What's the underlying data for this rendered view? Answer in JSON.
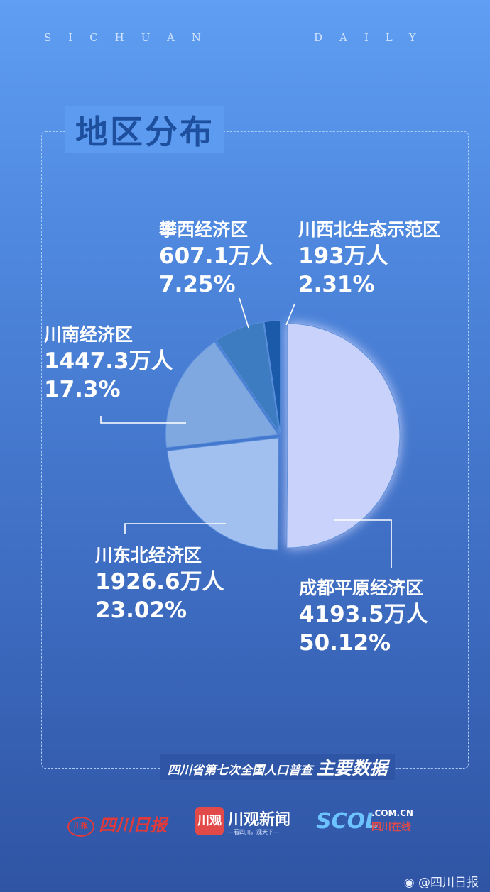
{
  "masthead": {
    "left": "SICHUAN",
    "right": "DAILY"
  },
  "section_title": "地区分布",
  "footer_tag": {
    "part1": "四川省第七次全国人口普查",
    "part2": "主要数据"
  },
  "logos": {
    "sichuan_daily_seal": "川报",
    "sichuan_daily": "四川日报",
    "chuanguan_icon": "川观",
    "chuanguan": "川观新闻",
    "chuanguan_slogan": "—看四川，观天下—",
    "scol": "SCOL",
    "scol_domain": ".COM.CN",
    "scol_cn": "四川在线"
  },
  "weibo": {
    "icon": "weibo-icon",
    "handle": "@四川日报"
  },
  "colors": {
    "region_chengdu": "#c9d2fb",
    "region_chuandongbei": "#a2c0ef",
    "region_chuannan": "#7fa8e0",
    "region_panxi": "#3e7cc1",
    "region_chuanxibei": "#1a5aa8",
    "title": "#1d4f9e"
  },
  "chart_data": {
    "type": "pie",
    "title": "地区分布",
    "unit": "万人",
    "slices": [
      {
        "label": "成都平原经济区",
        "population": 4193.5,
        "population_text": "4193.5万人",
        "percent": 50.12,
        "percent_text": "50.12%"
      },
      {
        "label": "川东北经济区",
        "population": 1926.6,
        "population_text": "1926.6万人",
        "percent": 23.02,
        "percent_text": "23.02%"
      },
      {
        "label": "川南经济区",
        "population": 1447.3,
        "population_text": "1447.3万人",
        "percent": 17.3,
        "percent_text": "17.3%"
      },
      {
        "label": "攀西经济区",
        "population": 607.1,
        "population_text": "607.1万人",
        "percent": 7.25,
        "percent_text": "7.25%"
      },
      {
        "label": "川西北生态示范区",
        "population": 193,
        "population_text": "193万人",
        "percent": 2.31,
        "percent_text": "2.31%"
      }
    ]
  }
}
